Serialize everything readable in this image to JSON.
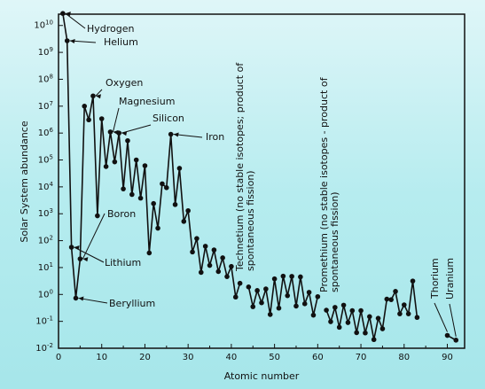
{
  "chart_data": {
    "type": "line",
    "title": "",
    "xlabel": "Atomic number",
    "ylabel": "Solar System abundance",
    "log_y": true,
    "xlim": [
      0,
      94
    ],
    "ylim": [
      0.01,
      30000000000.0
    ],
    "grid": false,
    "x_ticks": [
      0,
      10,
      20,
      30,
      40,
      50,
      60,
      70,
      80,
      90
    ],
    "y_ticks": [
      {
        "value": 10000000000.0,
        "base": "10",
        "exp": "10"
      },
      {
        "value": 1000000000.0,
        "base": "10",
        "exp": "9"
      },
      {
        "value": 100000000.0,
        "base": "10",
        "exp": "8"
      },
      {
        "value": 10000000.0,
        "base": "10",
        "exp": "7"
      },
      {
        "value": 1000000.0,
        "base": "10",
        "exp": "6"
      },
      {
        "value": 100000.0,
        "base": "10",
        "exp": "5"
      },
      {
        "value": 10000.0,
        "base": "10",
        "exp": "4"
      },
      {
        "value": 1000.0,
        "base": "10",
        "exp": "3"
      },
      {
        "value": 100.0,
        "base": "10",
        "exp": "2"
      },
      {
        "value": 10.0,
        "base": "10",
        "exp": "1"
      },
      {
        "value": 1,
        "base": "10",
        "exp": "0"
      },
      {
        "value": 0.1,
        "base": "10",
        "exp": "-1"
      },
      {
        "value": 0.01,
        "base": "10",
        "exp": "-2"
      }
    ],
    "segments": [
      {
        "x": [
          1,
          2,
          3,
          4,
          5,
          6,
          7,
          8,
          9,
          10,
          11,
          12,
          13,
          14,
          15,
          16,
          17,
          18,
          19,
          20,
          21,
          22,
          23,
          24,
          25,
          26,
          27,
          28,
          29,
          30,
          31,
          32,
          33,
          34,
          35,
          36,
          37,
          38,
          39,
          40,
          41,
          42
        ],
        "y": [
          28000000000.0,
          2700000000.0,
          57,
          0.73,
          21,
          10000000.0,
          3100000.0,
          24000000.0,
          840,
          3400000.0,
          57000.0,
          1100000.0,
          85000.0,
          1000000.0,
          8400,
          520000.0,
          5200,
          100000.0,
          3800,
          61000.0,
          35,
          2400,
          290,
          13000.0,
          9300,
          900000.0,
          2200,
          49000.0,
          520,
          1300,
          38,
          120,
          6.6,
          62,
          12,
          45,
          7.1,
          23,
          4.6,
          11,
          0.8,
          2.6
        ]
      },
      {
        "x": [
          44,
          45,
          46,
          47,
          48,
          49,
          50,
          51,
          52,
          53,
          54,
          55,
          56,
          57,
          58,
          59,
          60
        ],
        "y": [
          1.9,
          0.35,
          1.4,
          0.49,
          1.6,
          0.18,
          3.8,
          0.31,
          4.8,
          0.9,
          4.7,
          0.37,
          4.5,
          0.45,
          1.2,
          0.17,
          0.83
        ]
      },
      {
        "x": [
          62,
          63,
          64,
          65,
          66,
          67,
          68,
          69,
          70,
          71,
          72,
          73,
          74,
          75,
          76,
          77,
          78,
          79,
          80,
          81,
          82,
          83
        ],
        "y": [
          0.26,
          0.097,
          0.33,
          0.06,
          0.4,
          0.09,
          0.25,
          0.038,
          0.25,
          0.037,
          0.15,
          0.021,
          0.13,
          0.053,
          0.67,
          0.64,
          1.3,
          0.19,
          0.41,
          0.19,
          3.15,
          0.14
        ]
      },
      {
        "x": [
          90,
          92
        ],
        "y": [
          0.03,
          0.02
        ]
      }
    ],
    "annotations": [
      {
        "text": "Hydrogen",
        "z": 1
      },
      {
        "text": "Helium",
        "z": 2
      },
      {
        "text": "Oxygen",
        "z": 8
      },
      {
        "text": "Magnesium",
        "z": 12
      },
      {
        "text": "Silicon",
        "z": 14
      },
      {
        "text": "Iron",
        "z": 26
      },
      {
        "text": "Boron",
        "z": 5
      },
      {
        "text": "Lithium",
        "z": 3
      },
      {
        "text": "Beryllium",
        "z": 4
      },
      {
        "text": "Thorium",
        "z": 90
      },
      {
        "text": "Uranium",
        "z": 92
      }
    ],
    "vertical_notes": [
      {
        "z": 43,
        "line1": "Technetium (no stable isotopes; product of",
        "line2": "spontaneous fission)"
      },
      {
        "z": 61,
        "line1": "Promethium (no stable isotopes - product of",
        "line2": "spontaneous fission)"
      }
    ]
  }
}
